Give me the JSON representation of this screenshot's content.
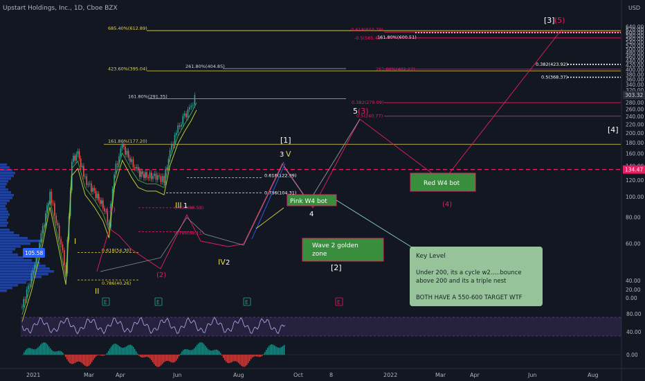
{
  "header": {
    "symbol": "Upstart Holdings, Inc., 1D, Cboe BZX",
    "currency": "USD"
  },
  "price_axis": {
    "ticks": [
      0,
      20,
      40,
      60,
      80,
      100,
      120,
      140,
      160,
      180,
      200,
      220,
      240,
      260,
      280,
      300,
      320,
      340,
      360,
      380,
      400,
      420,
      440,
      460,
      480,
      500,
      520,
      540,
      560,
      580,
      600,
      620,
      640
    ],
    "tick_labels": [
      "0.00",
      "20.00",
      "40.00",
      "60.00",
      "80.00",
      "100.00",
      "120.00",
      "140.00",
      "160.00",
      "180.00",
      "200.00",
      "220.00",
      "240.00",
      "260.00",
      "280.00",
      "300.00",
      "320.00",
      "340.00",
      "360.00",
      "380.00",
      "400.00",
      "420.00",
      "440.00",
      "460.00",
      "480.00",
      "500.00",
      "520.00",
      "540.00",
      "560.00",
      "580.00",
      "600.00",
      "620.00",
      "640.00"
    ],
    "last_price_label": "303.32",
    "last_price": 303.32,
    "hline_price_label": "134.47",
    "hline_price": 134.47,
    "scale": "logarithmic"
  },
  "time_axis": {
    "labels": [
      "2021",
      "Mar",
      "Apr",
      "Jun",
      "Aug",
      "Oct",
      "8",
      "2022",
      "Mar",
      "Apr",
      "Jun",
      "Aug"
    ]
  },
  "price_marker_left": "105.58",
  "fib_levels": {
    "yellow": [
      {
        "label": "685.40%(612.89)",
        "price": 612.89
      },
      {
        "label": "423.60%(395.04)",
        "price": 395.04
      },
      {
        "label": "161.80%(177.20)",
        "price": 177.2
      },
      {
        "label": "0.618(54.30)",
        "price": 54.3
      },
      {
        "label": "0.786(40.26)",
        "price": 40.26
      }
    ],
    "white": [
      {
        "label": "261.80%(404.85)",
        "price": 404.85
      },
      {
        "label": "161.80%(291.35)",
        "price": 291.35
      },
      {
        "label": "161.80%(600.51)",
        "price": 600.51
      },
      {
        "label": "0.618(122.99)",
        "price": 122.99
      },
      {
        "label": "0.786(104.31)",
        "price": 104.31
      },
      {
        "label": "0.382(423.92)",
        "price": 423.92
      },
      {
        "label": "0.5(368.37)",
        "price": 368.37
      }
    ],
    "pink": [
      {
        "label": "-0.618(603.79)",
        "price": 603.79
      },
      {
        "label": "-0.5(565.48)",
        "price": 565.48
      },
      {
        "label": "261.80%(402.27)",
        "price": 402.27
      },
      {
        "label": "0.382(279.09)",
        "price": 279.09
      },
      {
        "label": "0.5(240.77)",
        "price": 240.77
      },
      {
        "label": "0.618(88.59)",
        "price": 88.59
      },
      {
        "label": "0.786(68.11)",
        "price": 68.11
      }
    ]
  },
  "wave_labels": {
    "I": "I",
    "II": "II",
    "III": "III",
    "IV": "IV",
    "V": "V",
    "w1_pink": "(1)",
    "w2_pink": "(2)",
    "w1_white": "1",
    "w2_white": "2",
    "w3_white": "3",
    "w4_white": "4",
    "w5_white": "5",
    "w3_pink": "(3)",
    "w4_pink": "(4)",
    "w5_pink": "(5)",
    "bracket1": "[1]",
    "bracket2": "[2]",
    "bracket3": "[3]",
    "bracket4": "[4]"
  },
  "boxes": {
    "pink_w4": "Pink W4 bot",
    "red_w4": "Red W4 bot",
    "wave2_line1": "Wave 2 golden",
    "wave2_line2": "zone"
  },
  "note": {
    "title": "Key Level",
    "line1": "Under 200, its a cycle w2.....bounce",
    "line2": "above 200 and its a triple nest",
    "line3": "BOTH HAVE A 550-600 TARGET WTF"
  },
  "events": [
    "E",
    "E",
    "E",
    "E"
  ],
  "rsi_axis": [
    "80.00",
    "40.00"
  ],
  "macd_axis": [
    "0.00"
  ],
  "colors": {
    "background": "#131722",
    "yellow": "#e5d64a",
    "pink": "#e91e63",
    "white": "#d1d4dc",
    "green_box": "#388e3c",
    "note_bg": "#a5d6a7",
    "up": "#26a69a",
    "down": "#ef5350",
    "volume_profile": "#2962ff",
    "rsi_band": "#7e57c2",
    "macd_up": "#26a69a",
    "macd_down": "#ef5350"
  },
  "chart_data": {
    "type": "line",
    "title": "Upstart Holdings, Inc., 1D, Cboe BZX",
    "y_scale": "log",
    "ylim": [
      0,
      640
    ],
    "series": [
      {
        "name": "",
        "x": [
          "2021-01-01",
          "2021-01-15",
          "2021-02-01",
          "2021-02-12",
          "2021-02-26",
          "2021-03-08",
          "2021-03-17",
          "2021-03-26",
          "2021-04-06",
          "2021-04-20",
          "2021-05-03",
          "2021-05-12",
          "2021-05-20",
          "2021-06-01",
          "2021-06-15",
          "2021-06-25",
          "2021-07-08",
          "2021-07-22",
          "2021-08-03",
          "2021-08-12",
          "2021-08-24",
          "2021-09-03",
          "2021-09-13",
          "2021-09-21"
        ],
        "values": [
          30,
          42,
          70,
          105,
          65,
          45,
          148,
          160,
          120,
          105,
          90,
          75,
          130,
          175,
          145,
          130,
          125,
          125,
          120,
          165,
          210,
          240,
          270,
          303
        ]
      }
    ]
  }
}
